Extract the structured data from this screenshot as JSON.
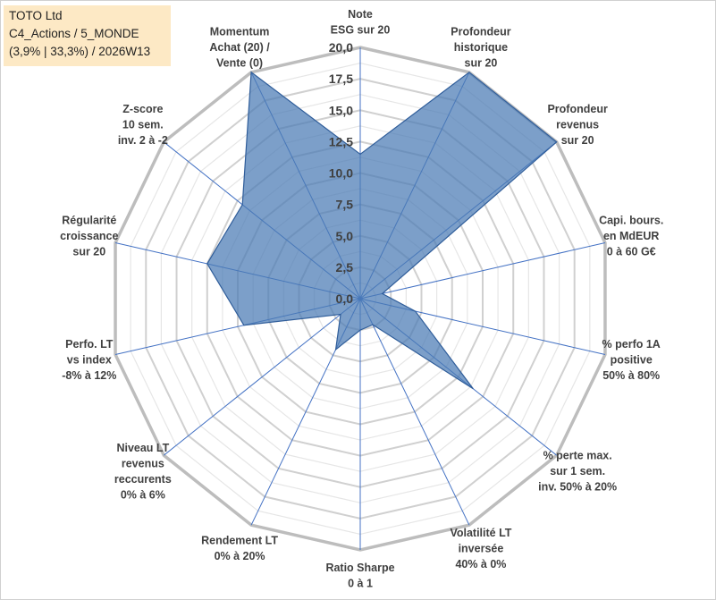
{
  "chart_data": {
    "type": "radar",
    "series_name": "TOTO Ltd",
    "rmin": 0,
    "rmax": 20,
    "r_ticks": [
      "0,0",
      "2,5",
      "5,0",
      "7,5",
      "10,0",
      "12,5",
      "15,0",
      "17,5",
      "20,0"
    ],
    "axes": [
      {
        "label": [
          "Note",
          "ESG sur 20"
        ],
        "value": 11.5
      },
      {
        "label": [
          "Profondeur",
          "historique",
          "sur 20"
        ],
        "value": 20
      },
      {
        "label": [
          "Profondeur",
          "revenus",
          "sur 20"
        ],
        "value": 20
      },
      {
        "label": [
          "Capi. bours.",
          "en MdEUR",
          "0 à 60 G€"
        ],
        "value": 1.8
      },
      {
        "label": [
          "% perfo 1A",
          "positive",
          "50% à 80%"
        ],
        "value": 4.5
      },
      {
        "label": [
          "% perte max.",
          "sur 1 sem.",
          "inv. 50% à 20%"
        ],
        "value": 11.5
      },
      {
        "label": [
          "Volatilité LT",
          "inversée",
          "40% à 0%"
        ],
        "value": 2.3
      },
      {
        "label": [
          "Ratio Sharpe",
          "0 à 1"
        ],
        "value": 2.5
      },
      {
        "label": [
          "Rendement LT",
          "0% à 20%"
        ],
        "value": 4.5
      },
      {
        "label": [
          "Niveau LT",
          "revenus",
          "reccurents",
          "0% à 6%"
        ],
        "value": 2.0
      },
      {
        "label": [
          "Perfo. LT",
          "vs index",
          "-8% à 12%"
        ],
        "value": 9.5
      },
      {
        "label": [
          "Régularité",
          "croissance",
          "sur 20"
        ],
        "value": 12.5
      },
      {
        "label": [
          "Z-score",
          "10 sem.",
          "inv. 2 à -2"
        ],
        "value": 12.0
      },
      {
        "label": [
          "Momentum",
          "Achat (20) /",
          "Vente (0)"
        ],
        "value": 20
      }
    ]
  },
  "info": {
    "name": "TOTO Ltd",
    "line2": "C4_Actions / 5_MONDE",
    "line3": "(3,9% | 33,3%) / 2026W13"
  },
  "colors": {
    "fill": "#4a7ab4",
    "stroke": "#2f5d9a",
    "grid": "#c8c8c8",
    "spoke": "#4472c4",
    "infobox": "#fde9c5"
  }
}
